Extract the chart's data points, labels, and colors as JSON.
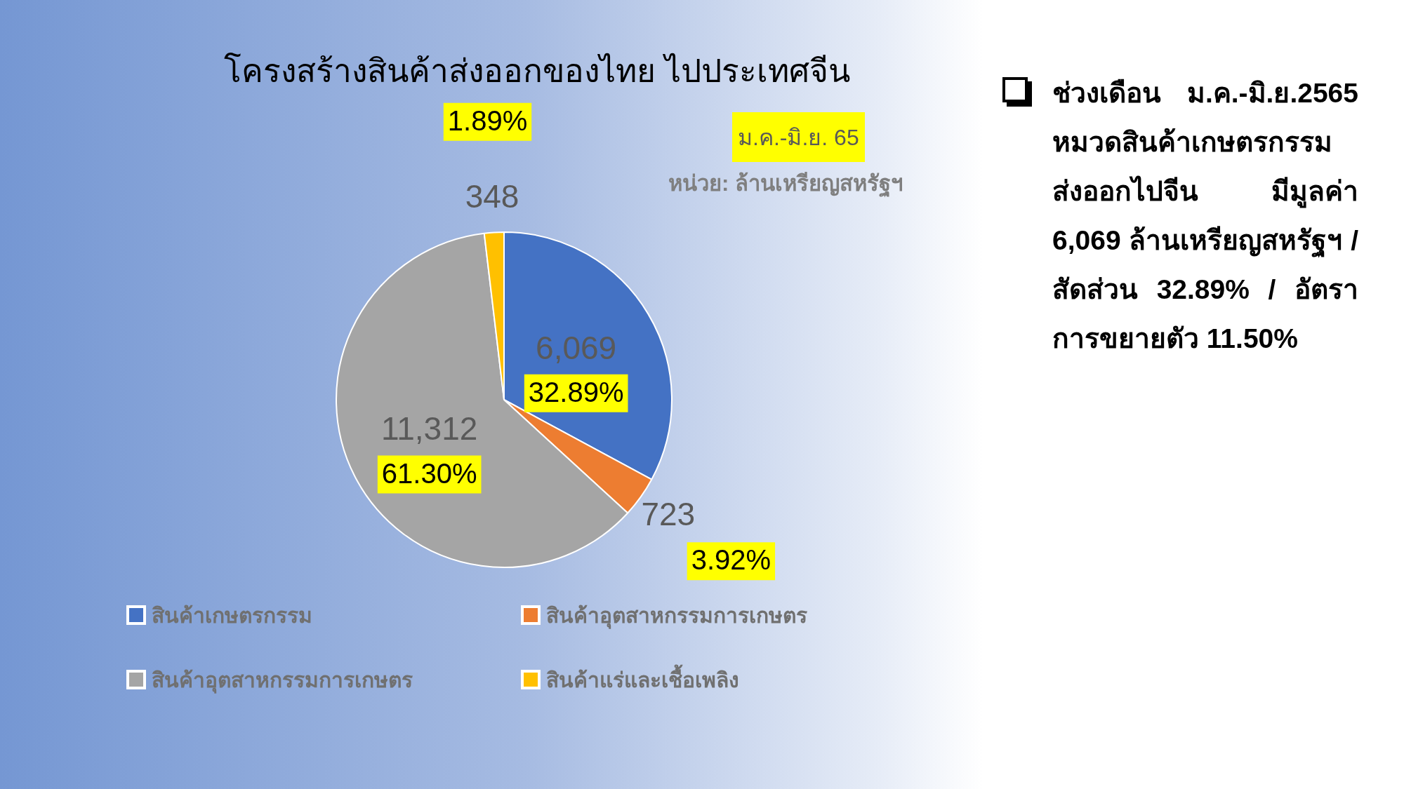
{
  "chart_data": {
    "type": "pie",
    "title": "โครงสร้างสินค้าส่งออกของไทย ไปประเทศจีน",
    "subtitle": "ม.ค.-มิ.ย. 65",
    "annotations": [
      "หน่วย: ล้านเหรียญสหรัฐฯ",
      "ช่วงเดือน ม.ค.-มิ.ย.2565 หมวดสินค้าเกษตรกรรม ส่งออกไปจีน มีมูลค่า 6,069 ล้านเหรียญสหรัฐฯ /สัดส่วน 32.89% / อัตราการขยายตัว 11.50%",
      "32.89%",
      "3.92%",
      "61.30%",
      "1.89%"
    ],
    "categories": [
      "สินค้าเกษตรกรรม",
      "สินค้าอุตสาหกรรมการเกษตร",
      "สินค้าอุตสาหกรรมการเกษตร",
      "สินค้าแร่และเชื้อเพลิง"
    ],
    "values": [
      6069,
      723,
      11312,
      348
    ],
    "colors": [
      "#4472c4",
      "#ed7d31",
      "#a5a5a5",
      "#ffc000"
    ],
    "value_labels": [
      "6,069",
      "723",
      "11,312",
      "348"
    ],
    "legend": "bottom"
  }
}
